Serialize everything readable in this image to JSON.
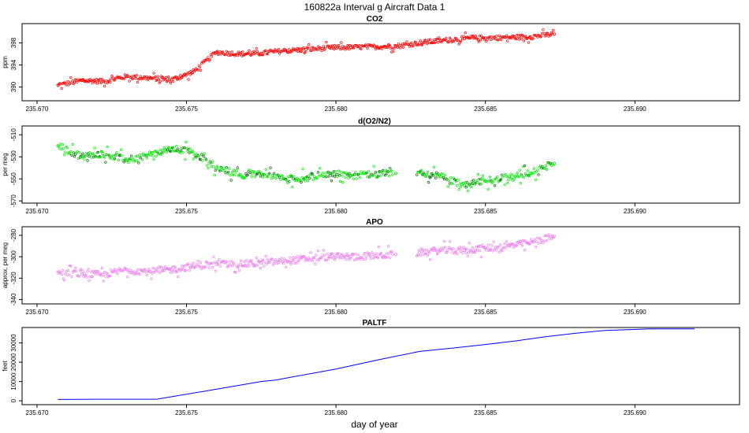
{
  "figure": {
    "title": "160822a   Interval g Aircraft Data 1",
    "xlabel": "day of year"
  },
  "chart_data": [
    {
      "type": "scatter",
      "title": "CO2",
      "ylabel": "ppm",
      "color": "#ff0000",
      "xlim": [
        235.6695,
        235.6935
      ],
      "ylim": [
        387.5,
        401.5
      ],
      "xticks": [
        "235.670",
        "235.675",
        "235.680",
        "235.685",
        "235.690"
      ],
      "yticks": [
        "390",
        "394",
        "398"
      ],
      "series": [
        {
          "x": [
            235.6707,
            235.6715,
            235.6722,
            235.673,
            235.6738,
            235.6745,
            235.6752,
            235.676,
            235.6768,
            235.6775,
            235.6783,
            235.679,
            235.6798,
            235.6805,
            235.6813,
            235.682,
            235.6828,
            235.6835,
            235.6843,
            235.685,
            235.6858,
            235.6865,
            235.6873
          ],
          "y": [
            390.3,
            391.2,
            391.0,
            391.9,
            391.6,
            391.3,
            392.6,
            396.3,
            396.0,
            396.1,
            396.6,
            396.8,
            397.1,
            397.2,
            397.3,
            397.4,
            398.0,
            398.4,
            398.8,
            398.9,
            399.0,
            399.1,
            399.6
          ]
        }
      ]
    },
    {
      "type": "scatter",
      "title": "d(O2/N2)",
      "ylabel": "per meg",
      "color": "#00ee00",
      "xlim": [
        235.6695,
        235.6935
      ],
      "ylim": [
        -572,
        -502
      ],
      "xticks": [
        "235.670",
        "235.675",
        "235.680",
        "235.685",
        "235.690"
      ],
      "yticks": [
        "-570",
        "-550",
        "-530",
        "-510"
      ],
      "series": [
        {
          "x": [
            235.6707,
            235.6715,
            235.6722,
            235.673,
            235.6738,
            235.6745,
            235.6752,
            235.676,
            235.6768,
            235.6775,
            235.6783,
            235.679,
            235.6798,
            235.6805,
            235.6813,
            235.682,
            235.6828,
            235.6835,
            235.6843,
            235.685,
            235.6858,
            235.6865,
            235.6873
          ],
          "y": [
            -520,
            -530,
            -527,
            -533,
            -528,
            -523,
            -525,
            -540,
            -546,
            -545,
            -550,
            -549,
            -545,
            -547,
            -546,
            -545,
            -544,
            -548,
            -556,
            -552,
            -548,
            -545,
            -536
          ]
        }
      ]
    },
    {
      "type": "scatter",
      "title": "APO",
      "ylabel": "approx. per meg",
      "color": "#ee82ee",
      "xlim": [
        235.6695,
        235.6935
      ],
      "ylim": [
        -344,
        -272
      ],
      "xticks": [
        "235.670",
        "235.675",
        "235.680",
        "235.685",
        "235.690"
      ],
      "yticks": [
        "-340",
        "-320",
        "-300",
        "-280"
      ],
      "series": [
        {
          "x": [
            235.6707,
            235.6715,
            235.6722,
            235.673,
            235.6738,
            235.6745,
            235.6752,
            235.676,
            235.6768,
            235.6775,
            235.6783,
            235.679,
            235.6798,
            235.6805,
            235.6813,
            235.682,
            235.6828,
            235.6835,
            235.6843,
            235.685,
            235.6858,
            235.6865,
            235.6873
          ],
          "y": [
            -315,
            -316,
            -317,
            -312,
            -314,
            -312,
            -309,
            -307,
            -307,
            -306,
            -304,
            -302,
            -300,
            -300,
            -299,
            -298,
            -296,
            -294,
            -294,
            -292,
            -290,
            -287,
            -281
          ]
        }
      ]
    },
    {
      "type": "line",
      "title": "PALTF",
      "ylabel": "feet",
      "color": "#0000ff",
      "xlim": [
        235.6695,
        235.6935
      ],
      "ylim": [
        -2000,
        38000
      ],
      "xticks": [
        "235.670",
        "235.675",
        "235.680",
        "235.685",
        "235.690"
      ],
      "yticks": [
        "0",
        "10000",
        "20000",
        "30000"
      ],
      "series": [
        {
          "x": [
            235.6707,
            235.672,
            235.673,
            235.674,
            235.676,
            235.6775,
            235.678,
            235.68,
            235.6815,
            235.6828,
            235.684,
            235.685,
            235.686,
            235.687,
            235.688,
            235.689,
            235.6905,
            235.692
          ],
          "y": [
            700,
            800,
            800,
            800,
            6000,
            10000,
            10800,
            16500,
            21500,
            25600,
            27500,
            29200,
            31000,
            33200,
            35000,
            36500,
            37300,
            37300
          ]
        }
      ]
    }
  ]
}
